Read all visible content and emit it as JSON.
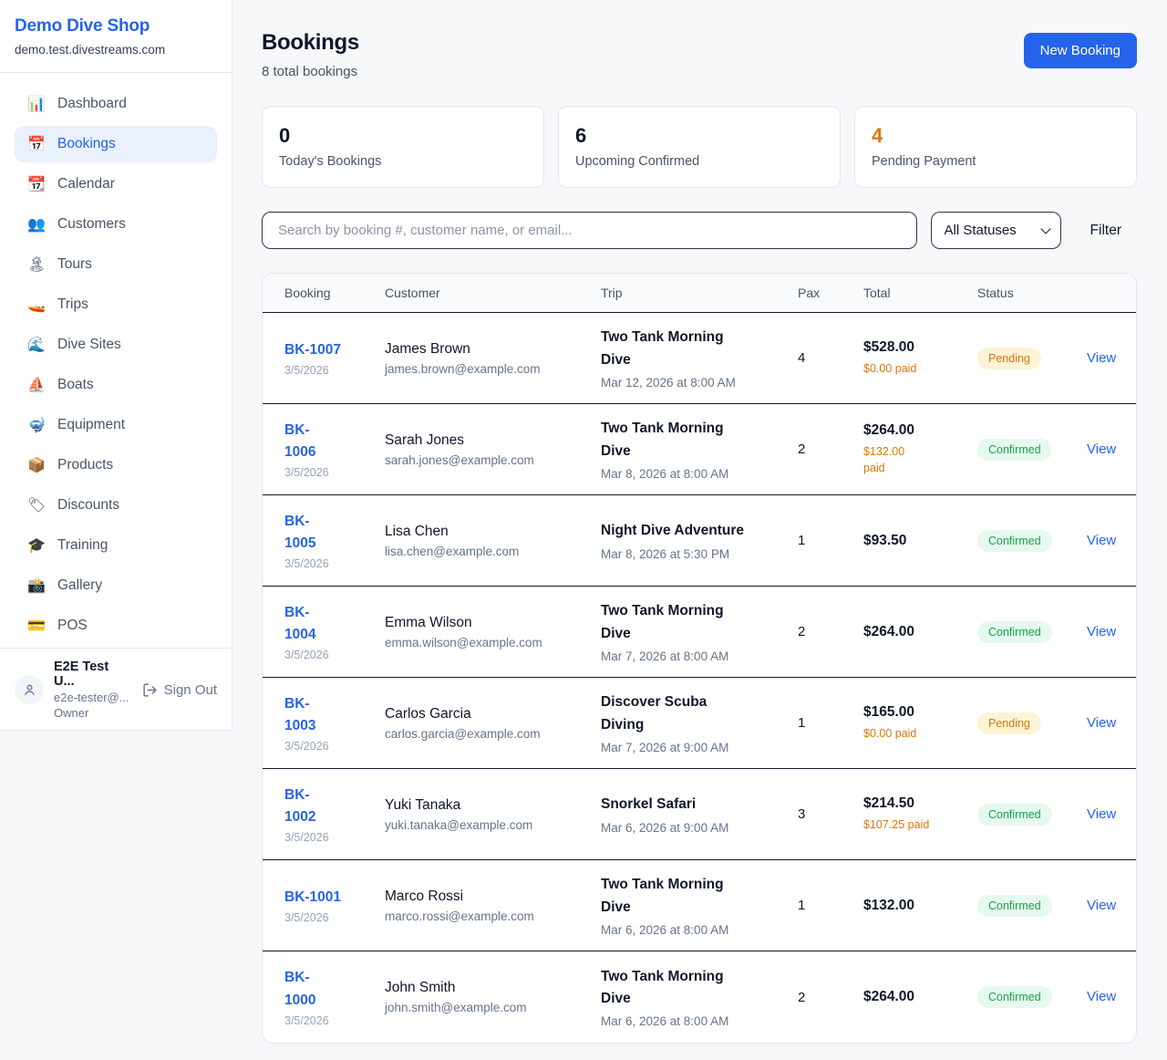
{
  "colors": {
    "accent": "#2563eb",
    "pending_text": "#d97706",
    "pending_bg": "#fdf3d5",
    "confirmed_text": "#16a34a",
    "confirmed_bg": "#e6f9ee",
    "paid_orange": "#d97706"
  },
  "sidebar": {
    "title": "Demo Dive Shop",
    "subdomain": "demo.test.divestreams.com",
    "items": [
      {
        "id": "dashboard",
        "icon": "bar-chart-icon",
        "glyph": "📊",
        "label": "Dashboard",
        "active": false
      },
      {
        "id": "bookings",
        "icon": "calendar-icon",
        "glyph": "📅",
        "label": "Bookings",
        "active": true
      },
      {
        "id": "calendar",
        "icon": "tear-calendar-icon",
        "glyph": "📆",
        "label": "Calendar",
        "active": false
      },
      {
        "id": "customers",
        "icon": "people-icon",
        "glyph": "👥",
        "label": "Customers",
        "active": false
      },
      {
        "id": "tours",
        "icon": "island-icon",
        "glyph": "🏝",
        "label": "Tours",
        "active": false
      },
      {
        "id": "trips",
        "icon": "speedboat-icon",
        "glyph": "🚤",
        "label": "Trips",
        "active": false
      },
      {
        "id": "dive-sites",
        "icon": "wave-icon",
        "glyph": "🌊",
        "label": "Dive Sites",
        "active": false
      },
      {
        "id": "boats",
        "icon": "sailboat-icon",
        "glyph": "⛵",
        "label": "Boats",
        "active": false
      },
      {
        "id": "equipment",
        "icon": "diving-mask-icon",
        "glyph": "🤿",
        "label": "Equipment",
        "active": false
      },
      {
        "id": "products",
        "icon": "package-icon",
        "glyph": "📦",
        "label": "Products",
        "active": false
      },
      {
        "id": "discounts",
        "icon": "label-tag-icon",
        "glyph": "🏷",
        "label": "Discounts",
        "active": false
      },
      {
        "id": "training",
        "icon": "grad-cap-icon",
        "glyph": "🎓",
        "label": "Training",
        "active": false
      },
      {
        "id": "gallery",
        "icon": "camera-icon",
        "glyph": "📸",
        "label": "Gallery",
        "active": false
      },
      {
        "id": "pos",
        "icon": "credit-card-icon",
        "glyph": "💳",
        "label": "POS",
        "active": false
      }
    ],
    "user": {
      "name": "E2E Test U...",
      "email": "e2e-tester@...",
      "role": "Owner",
      "sign_out_label": "Sign Out"
    }
  },
  "header": {
    "title": "Bookings",
    "subtitle": "8 total bookings",
    "new_booking_label": "New Booking"
  },
  "stats": [
    {
      "value": "0",
      "label": "Today's Bookings",
      "color": "dark"
    },
    {
      "value": "6",
      "label": "Upcoming Confirmed",
      "color": "dark"
    },
    {
      "value": "4",
      "label": "Pending Payment",
      "color": "orange"
    }
  ],
  "controls": {
    "search_placeholder": "Search by booking #, customer name, or email...",
    "status_filter_value": "All Statuses",
    "filter_label": "Filter"
  },
  "table": {
    "columns": [
      "Booking",
      "Customer",
      "Trip",
      "Pax",
      "Total",
      "Status",
      ""
    ],
    "rows": [
      {
        "id_lines": [
          "BK-1007"
        ],
        "date": "3/5/2026",
        "customer_name": "James Brown",
        "customer_email": "james.brown@example.com",
        "trip_lines": [
          "Two Tank Morning",
          "Dive"
        ],
        "trip_datetime": "Mar 12, 2026 at 8:00 AM",
        "pax": "4",
        "total": "$528.00",
        "paid_lines": [
          "$0.00 paid"
        ],
        "status": "Pending",
        "view_label": "View"
      },
      {
        "id_lines": [
          "BK-",
          "1006"
        ],
        "date": "3/5/2026",
        "customer_name": "Sarah Jones",
        "customer_email": "sarah.jones@example.com",
        "trip_lines": [
          "Two Tank Morning",
          "Dive"
        ],
        "trip_datetime": "Mar 8, 2026 at 8:00 AM",
        "pax": "2",
        "total": "$264.00",
        "paid_lines": [
          "$132.00",
          "paid"
        ],
        "status": "Confirmed",
        "view_label": "View"
      },
      {
        "id_lines": [
          "BK-",
          "1005"
        ],
        "date": "3/5/2026",
        "customer_name": "Lisa Chen",
        "customer_email": "lisa.chen@example.com",
        "trip_lines": [
          "Night Dive Adventure"
        ],
        "trip_datetime": "Mar 8, 2026 at 5:30 PM",
        "pax": "1",
        "total": "$93.50",
        "paid_lines": [],
        "status": "Confirmed",
        "view_label": "View"
      },
      {
        "id_lines": [
          "BK-",
          "1004"
        ],
        "date": "3/5/2026",
        "customer_name": "Emma Wilson",
        "customer_email": "emma.wilson@example.com",
        "trip_lines": [
          "Two Tank Morning",
          "Dive"
        ],
        "trip_datetime": "Mar 7, 2026 at 8:00 AM",
        "pax": "2",
        "total": "$264.00",
        "paid_lines": [],
        "status": "Confirmed",
        "view_label": "View"
      },
      {
        "id_lines": [
          "BK-",
          "1003"
        ],
        "date": "3/5/2026",
        "customer_name": "Carlos Garcia",
        "customer_email": "carlos.garcia@example.com",
        "trip_lines": [
          "Discover Scuba",
          "Diving"
        ],
        "trip_datetime": "Mar 7, 2026 at 9:00 AM",
        "pax": "1",
        "total": "$165.00",
        "paid_lines": [
          "$0.00 paid"
        ],
        "status": "Pending",
        "view_label": "View"
      },
      {
        "id_lines": [
          "BK-",
          "1002"
        ],
        "date": "3/5/2026",
        "customer_name": "Yuki Tanaka",
        "customer_email": "yuki.tanaka@example.com",
        "trip_lines": [
          "Snorkel Safari"
        ],
        "trip_datetime": "Mar 6, 2026 at 9:00 AM",
        "pax": "3",
        "total": "$214.50",
        "paid_lines": [
          "$107.25 paid"
        ],
        "status": "Confirmed",
        "view_label": "View"
      },
      {
        "id_lines": [
          "BK-1001"
        ],
        "date": "3/5/2026",
        "customer_name": "Marco Rossi",
        "customer_email": "marco.rossi@example.com",
        "trip_lines": [
          "Two Tank Morning",
          "Dive"
        ],
        "trip_datetime": "Mar 6, 2026 at 8:00 AM",
        "pax": "1",
        "total": "$132.00",
        "paid_lines": [],
        "status": "Confirmed",
        "view_label": "View"
      },
      {
        "id_lines": [
          "BK-",
          "1000"
        ],
        "date": "3/5/2026",
        "customer_name": "John Smith",
        "customer_email": "john.smith@example.com",
        "trip_lines": [
          "Two Tank Morning",
          "Dive"
        ],
        "trip_datetime": "Mar 6, 2026 at 8:00 AM",
        "pax": "2",
        "total": "$264.00",
        "paid_lines": [],
        "status": "Confirmed",
        "view_label": "View"
      }
    ]
  }
}
